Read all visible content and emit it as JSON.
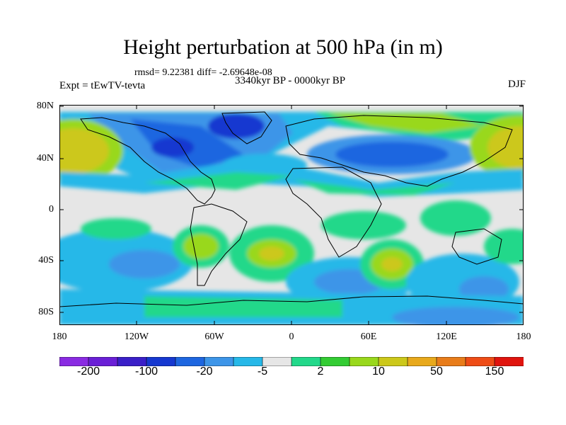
{
  "title": "Height perturbation at 500 hPa (in m)",
  "stats": "rmsd= 9.22381 diff= -2.69648e-08",
  "period": "3340kyr BP - 0000kyr BP",
  "experiment": "Expt = tEwTV-tevta",
  "season": "DJF",
  "y_ticks": [
    "80N",
    "40N",
    "0",
    "40S",
    "80S"
  ],
  "x_ticks": [
    "180",
    "120W",
    "60W",
    "0",
    "60E",
    "120E",
    "180"
  ],
  "colorbar": {
    "colors": [
      "#8a2be2",
      "#6a1fd6",
      "#3a1fc8",
      "#1638d0",
      "#1e66e0",
      "#3d95e8",
      "#26b8e8",
      "#e6e6e6",
      "#22d88a",
      "#33cc33",
      "#99d81c",
      "#ccc81a",
      "#e8a91c",
      "#e87c1a",
      "#ee4c16",
      "#e0140e"
    ],
    "labels": [
      "-200",
      "-100",
      "-20",
      "-5",
      "2",
      "10",
      "50",
      "150"
    ]
  }
}
